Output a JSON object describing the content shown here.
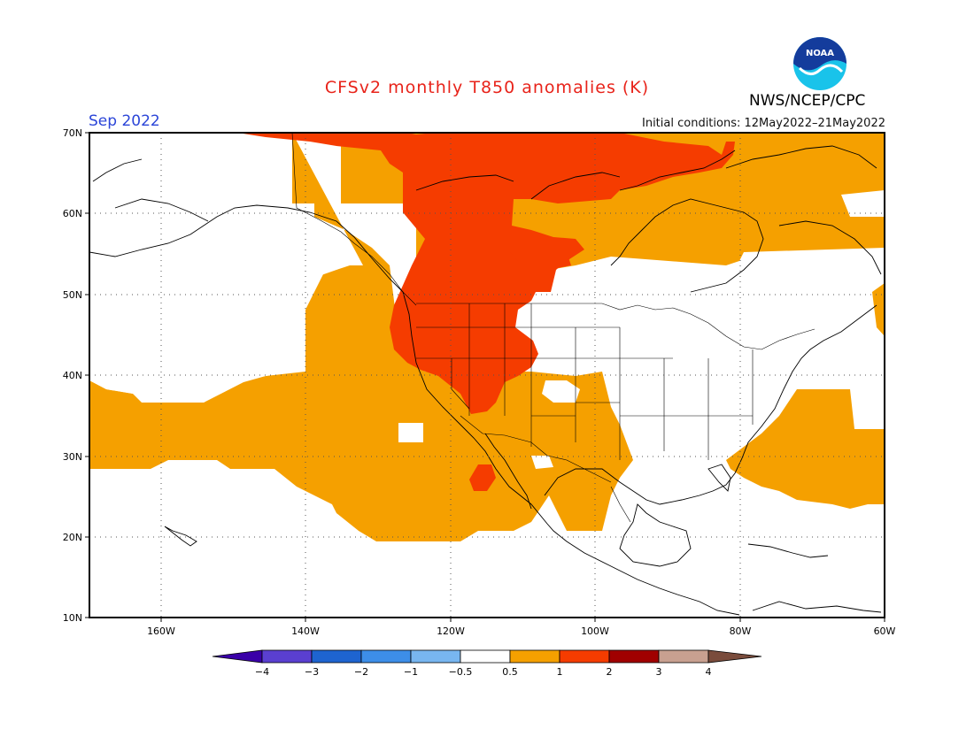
{
  "title": "CFSv2 monthly T850 anomalies (K)",
  "valid_month": "Sep 2022",
  "initial_conditions": "Initial conditions: 12May2022–21May2022",
  "agency": "NWS/NCEP/CPC",
  "logo_text": "NOAA",
  "map": {
    "lon_range": [
      -172,
      -60
    ],
    "lat_range": [
      10,
      70
    ],
    "lat_labels": [
      "70N",
      "60N",
      "50N",
      "40N",
      "30N",
      "20N",
      "10N"
    ],
    "lon_labels": [
      "160W",
      "140W",
      "120W",
      "100W",
      "80W",
      "60W"
    ],
    "grid": "dotted"
  },
  "colorbar": {
    "labels": [
      "−4",
      "−3",
      "−2",
      "−1",
      "−0.5",
      "0.5",
      "1",
      "2",
      "3",
      "4"
    ],
    "colors": [
      "#3a00a8",
      "#5a3fd0",
      "#1e64d0",
      "#3d8ee8",
      "#78b6f0",
      "#ffffff",
      "#f5a000",
      "#f53c00",
      "#a00000",
      "#c8a090",
      "#7a4c3c"
    ]
  }
}
